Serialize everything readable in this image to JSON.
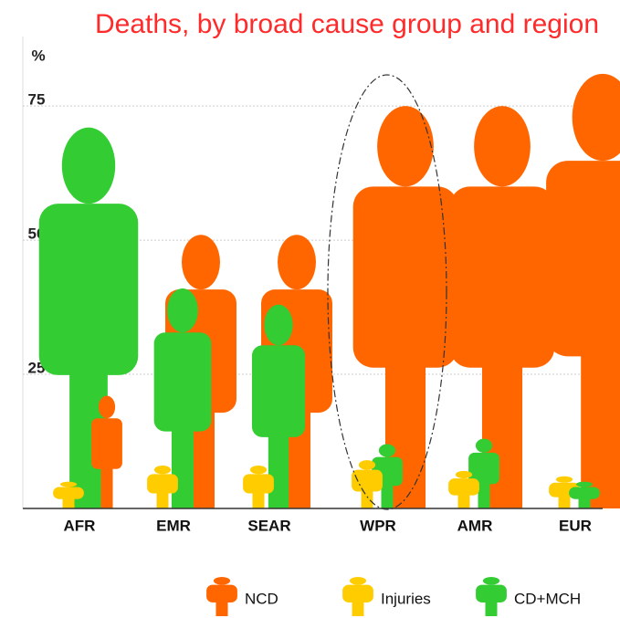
{
  "chart_data": {
    "type": "pictogram",
    "title": "Deaths, by broad cause group and region",
    "y_label": "%",
    "categories": [
      "AFR",
      "EMR",
      "SEAR",
      "WPR",
      "AMR",
      "EUR"
    ],
    "series": [
      {
        "name": "NCD",
        "color": "#ff6600",
        "values": [
          21,
          51,
          51,
          75,
          75,
          81
        ]
      },
      {
        "name": "Injuries",
        "color": "#ffcc00",
        "values": [
          5,
          8,
          8,
          9,
          7,
          6
        ]
      },
      {
        "name": "CD+MCH",
        "color": "#33cc33",
        "values": [
          71,
          41,
          38,
          12,
          13,
          5
        ]
      }
    ],
    "ylim": [
      0,
      82
    ],
    "yticks": [
      25,
      50,
      75
    ],
    "grid": true
  }
}
